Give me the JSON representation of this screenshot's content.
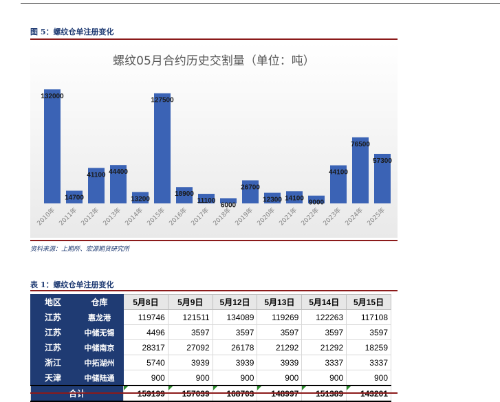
{
  "figure": {
    "caption": "图 5：螺纹仓单注册变化",
    "source": "资料来源：上期所、宏源期货研究所"
  },
  "chart_data": {
    "type": "bar",
    "title": "螺纹05月合约历史交割量（单位：吨）",
    "categories": [
      "2010年",
      "2011年",
      "2012年",
      "2013年",
      "2014年",
      "2015年",
      "2016年",
      "2017年",
      "2018年",
      "2019年",
      "2020年",
      "2021年",
      "2022年",
      "2023年",
      "2024年",
      "2025年"
    ],
    "values": [
      132000,
      14700,
      41100,
      44400,
      13200,
      127500,
      18900,
      11100,
      6000,
      26700,
      12300,
      14100,
      9000,
      44100,
      76500,
      57300
    ],
    "ylim": [
      0,
      140000
    ],
    "grid": false,
    "legend": "none",
    "bar_color": "#3b63b5"
  },
  "table": {
    "caption": "表 1：螺纹仓单注册变化",
    "headers": [
      "地区",
      "仓库",
      "5月8日",
      "5月9日",
      "5月12日",
      "5月13日",
      "5月14日",
      "5月15日"
    ],
    "rows": [
      {
        "region": "江苏",
        "warehouse": "惠龙港",
        "values": [
          "119746",
          "121511",
          "134089",
          "119269",
          "122263",
          "117108"
        ]
      },
      {
        "region": "江苏",
        "warehouse": "中储无锡",
        "values": [
          "4496",
          "3597",
          "3597",
          "3597",
          "3597",
          "3597"
        ]
      },
      {
        "region": "江苏",
        "warehouse": "中储南京",
        "values": [
          "28317",
          "27092",
          "26178",
          "21292",
          "21292",
          "18259"
        ]
      },
      {
        "region": "浙江",
        "warehouse": "中拓湖州",
        "values": [
          "5740",
          "3939",
          "3939",
          "3939",
          "3337",
          "3337"
        ]
      },
      {
        "region": "天津",
        "warehouse": "中储陆通",
        "values": [
          "900",
          "900",
          "900",
          "900",
          "900",
          "900"
        ]
      }
    ],
    "total": {
      "label": "合计",
      "values": [
        "159199",
        "157039",
        "168703",
        "148997",
        "151389",
        "143201"
      ]
    }
  }
}
